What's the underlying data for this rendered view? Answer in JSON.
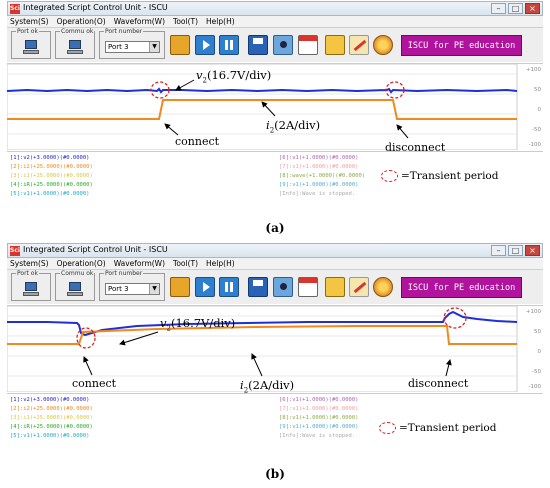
{
  "window": {
    "title": "Integrated Script Control Unit - ISCU",
    "app_icon": "Sci",
    "controls": {
      "minimize": "–",
      "maximize": "□",
      "close": "×"
    }
  },
  "menu": [
    "System(S)",
    "Operation(O)",
    "Waveform(W)",
    "Tool(T)",
    "Help(H)"
  ],
  "toolbar": {
    "port_label": "Port ok",
    "commu_label": "Commu ok",
    "port_number_label": "Port number",
    "port_value": "Port 3",
    "brand": "ISCU for PE education",
    "icons": [
      "lock-icon",
      "play-icon",
      "pause-icon",
      "save-icon",
      "camera-icon",
      "calendar-icon",
      "document-icon",
      "pen-icon",
      "gear-icon"
    ]
  },
  "axis": {
    "ticks": [
      "+100",
      "50",
      "0",
      "-50",
      "-100"
    ]
  },
  "panel_a": {
    "channels_left": [
      {
        "text": "[1]:v2(+3.0000)(#0.0000)",
        "color": "#2222cc"
      },
      {
        "text": "[2]:i2(+25.0000)(#0.0000)",
        "color": "#e88a1c"
      },
      {
        "text": "[3]:i1(+25.0000)(#0.0000)",
        "color": "#d8c64a"
      },
      {
        "text": "[4]:iR(+25.0000)(#0.0000)",
        "color": "#28a828"
      },
      {
        "text": "[5]:v1(+1.0000)(#0.0000)",
        "color": "#1aa8c8"
      }
    ],
    "channels_right": [
      {
        "text": "[6]:v1(+1.0000)(#0.0000)",
        "color": "#b060b0"
      },
      {
        "text": "[7]:v1(+1.0000)(#0.0000)",
        "color": "#f0a0a0"
      },
      {
        "text": "[8]:wave(+1.0000)(#0.0000)",
        "color": "#88aa44"
      },
      {
        "text": "[9]:v1(+1.0000)(#0.0000)",
        "color": "#55aacc"
      },
      {
        "text": "[Info]:Wave is stopped.",
        "color": "#aaaaaa"
      }
    ],
    "annotations": {
      "v2_symbol": "v",
      "v2_sub": "2",
      "v2_scale": "(16.7V/div)",
      "i2_symbol": "i",
      "i2_sub": "2",
      "i2_scale": "(2A/div)",
      "connect": "connect",
      "disconnect": "disconnect"
    },
    "legend": "=Transient period",
    "caption": "(a)"
  },
  "panel_b": {
    "channels_left": [
      {
        "text": "[1]:v2(+3.0000)(#0.0000)",
        "color": "#2222cc"
      },
      {
        "text": "[2]:i2(+25.0000)(#0.0000)",
        "color": "#e88a1c"
      },
      {
        "text": "[3]:i1(+25.0000)(#0.0000)",
        "color": "#d8c64a"
      },
      {
        "text": "[4]:iR(+25.0000)(#0.0000)",
        "color": "#28a828"
      },
      {
        "text": "[5]:v1(+1.0000)(#0.0000)",
        "color": "#1aa8c8"
      }
    ],
    "channels_right": [
      {
        "text": "[6]:v1(+1.0000)(#0.0000)",
        "color": "#b060b0"
      },
      {
        "text": "[7]:v1(+1.0000)(#0.0000)",
        "color": "#f0a0a0"
      },
      {
        "text": "[8]:v1(+1.0000)(#0.0000)",
        "color": "#88aa44"
      },
      {
        "text": "[9]:v1(+1.0000)(#0.0000)",
        "color": "#55aacc"
      },
      {
        "text": "[Info]:Wave is stopped.",
        "color": "#aaaaaa"
      }
    ],
    "annotations": {
      "v2_symbol": "v",
      "v2_sub": "2",
      "v2_scale": "(16.7V/div)",
      "i2_symbol": "i",
      "i2_sub": "2",
      "i2_scale": "(2A/div)",
      "connect": "connect",
      "disconnect": "disconnect"
    },
    "legend": "=Transient period",
    "caption": "(b)"
  },
  "colors": {
    "voltage": "#1f2fd8",
    "current": "#f08a1e",
    "transient_marker": "#e02020",
    "brand": "#b0149c"
  }
}
